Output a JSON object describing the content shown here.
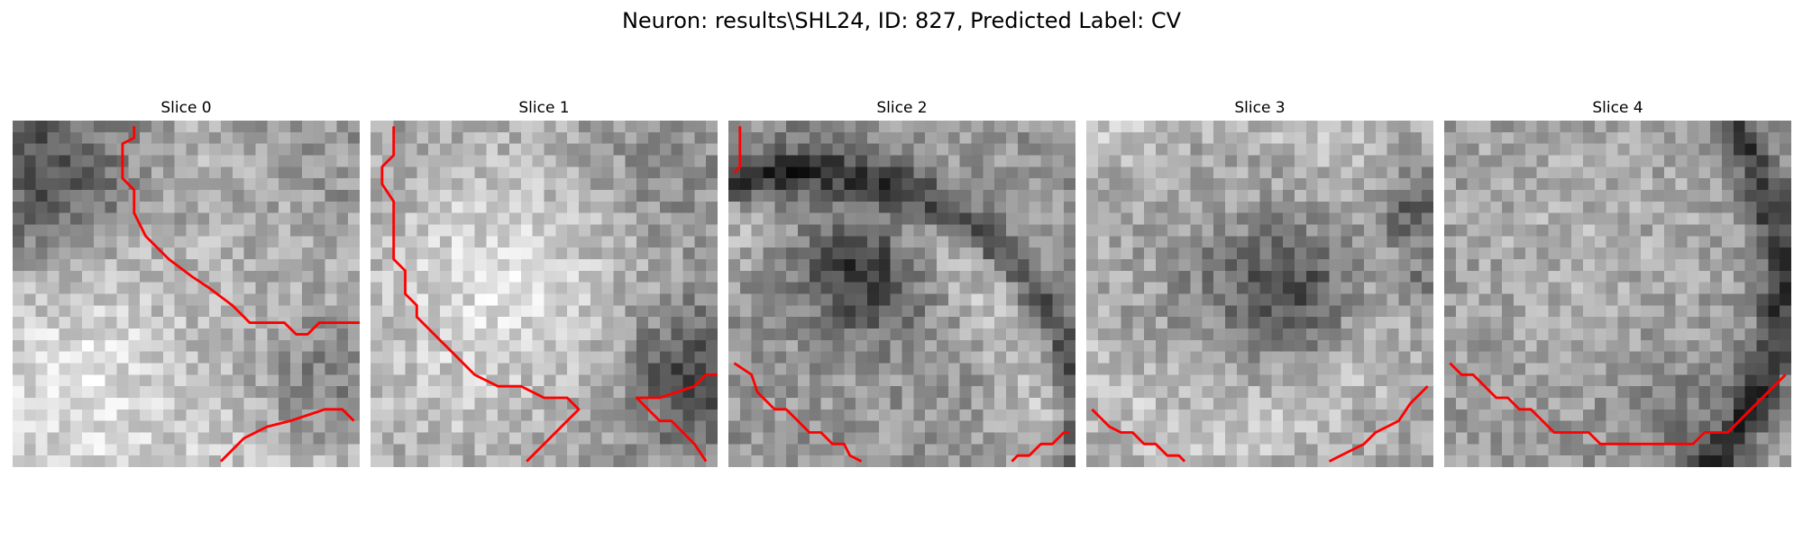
{
  "figure": {
    "title": "Neuron: results\\SHL24, ID: 827, Predicted Label: CV"
  },
  "panels": [
    {
      "title": "Slice 0"
    },
    {
      "title": "Slice 1"
    },
    {
      "title": "Slice 2"
    },
    {
      "title": "Slice 3"
    },
    {
      "title": "Slice 4"
    }
  ],
  "colors": {
    "contour": "#ff0000",
    "colormap": "gray"
  },
  "image_grid_size": 30
}
